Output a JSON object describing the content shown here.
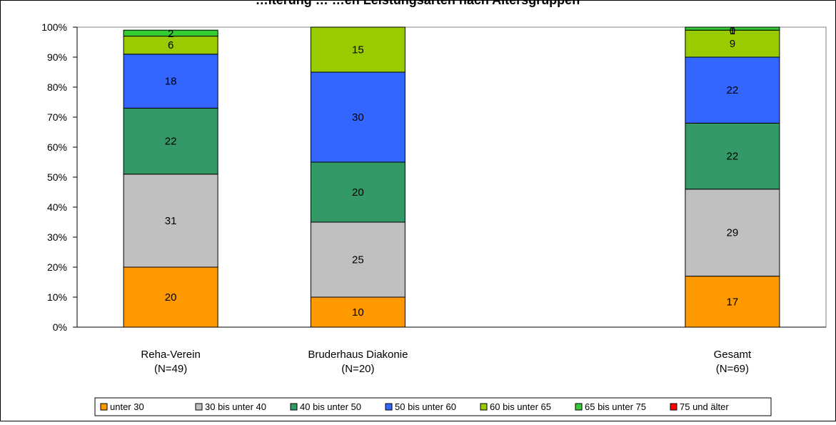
{
  "chart_data": {
    "type": "bar",
    "stacked": true,
    "percent_stacked": true,
    "title": "…lterung … …en Leistungsarten nach Altersgruppen",
    "title_visible_fragment": "g                                                 g                       g pp",
    "categories": [
      "Reha-Verein",
      "Bruderhaus Diakonie",
      "",
      "Gesamt"
    ],
    "category_sublabels": [
      "(N=49)",
      "(N=20)",
      "",
      "(N=69)"
    ],
    "ylim": [
      0,
      100
    ],
    "yticks": [
      "0%",
      "10%",
      "20%",
      "30%",
      "40%",
      "50%",
      "60%",
      "70%",
      "80%",
      "90%",
      "100%"
    ],
    "grid": false,
    "legend_position": "bottom",
    "series": [
      {
        "name": "unter 30",
        "color": "#ff9900",
        "values": [
          20,
          10,
          null,
          17
        ],
        "labels": [
          "20",
          "10",
          "",
          "17"
        ]
      },
      {
        "name": "30 bis unter 40",
        "color": "#c0c0c0",
        "values": [
          31,
          25,
          null,
          29
        ],
        "labels": [
          "31",
          "25",
          "",
          "29"
        ]
      },
      {
        "name": "40 bis unter 50",
        "color": "#339966",
        "values": [
          22,
          20,
          null,
          22
        ],
        "labels": [
          "22",
          "20",
          "",
          "22"
        ]
      },
      {
        "name": "50 bis unter 60",
        "color": "#3366ff",
        "values": [
          18,
          30,
          null,
          22
        ],
        "labels": [
          "18",
          "30",
          "",
          "22"
        ]
      },
      {
        "name": "60 bis unter 65",
        "color": "#99cc00",
        "values": [
          6,
          15,
          null,
          9
        ],
        "labels": [
          "6",
          "15",
          "",
          "9"
        ]
      },
      {
        "name": "65 bis unter 75",
        "color": "#33cc33",
        "values": [
          2,
          0,
          null,
          1
        ],
        "labels": [
          "2",
          "",
          "",
          "1"
        ]
      },
      {
        "name": "75 und älter",
        "color": "#ff0000",
        "values": [
          0,
          0,
          null,
          0
        ],
        "labels": [
          "",
          "",
          "",
          "0"
        ]
      }
    ]
  }
}
